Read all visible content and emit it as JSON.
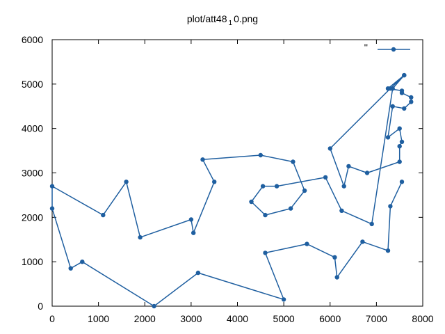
{
  "chart_data": {
    "type": "line",
    "title_main": "plot/att48",
    "title_sub": "1",
    "title_end": "0.png",
    "xlim": [
      0,
      8000
    ],
    "ylim": [
      0,
      6000
    ],
    "x_ticks": [
      0,
      1000,
      2000,
      3000,
      4000,
      5000,
      6000,
      7000,
      8000
    ],
    "y_ticks": [
      0,
      1000,
      2000,
      3000,
      4000,
      5000,
      6000
    ],
    "x_tick_labels": [
      "0",
      "1000",
      "2000",
      "3000",
      "4000",
      "5000",
      "6000",
      "7000",
      "8000"
    ],
    "y_tick_labels": [
      "0",
      "1000",
      "2000",
      "3000",
      "4000",
      "5000",
      "6000"
    ],
    "grid": false,
    "legend_position": "top-right",
    "series": [
      {
        "name": "''",
        "color": "#1f5fa0",
        "marker": "filled-circle",
        "x": [
          7600,
          7300,
          6000,
          6300,
          6400,
          6800,
          7500,
          7500,
          7550,
          7500,
          7250,
          7350,
          7600,
          7750,
          7750,
          7550,
          7550,
          7250,
          7600,
          7350,
          6900,
          6250,
          5900,
          4850,
          4550,
          4300,
          4600,
          5150,
          5450,
          5200,
          4500,
          3250,
          3500,
          3050,
          3000,
          1900,
          1600,
          1100,
          0,
          0,
          400,
          650,
          2200,
          3150,
          5000,
          4600,
          5500,
          6100,
          6150,
          6700,
          7250,
          7300,
          7550
        ],
        "y": [
          5200,
          4900,
          3550,
          2700,
          3150,
          3000,
          3250,
          3600,
          3700,
          4000,
          3800,
          4500,
          4450,
          4600,
          4700,
          4800,
          4850,
          4900,
          5200,
          4900,
          1850,
          2150,
          2900,
          2700,
          2700,
          2350,
          2050,
          2200,
          2600,
          3250,
          3400,
          3300,
          2800,
          1650,
          1950,
          1550,
          2800,
          2050,
          2700,
          2200,
          850,
          1000,
          0,
          750,
          150,
          1200,
          1400,
          1100,
          650,
          1450,
          1250,
          2250,
          2800
        ]
      }
    ]
  }
}
